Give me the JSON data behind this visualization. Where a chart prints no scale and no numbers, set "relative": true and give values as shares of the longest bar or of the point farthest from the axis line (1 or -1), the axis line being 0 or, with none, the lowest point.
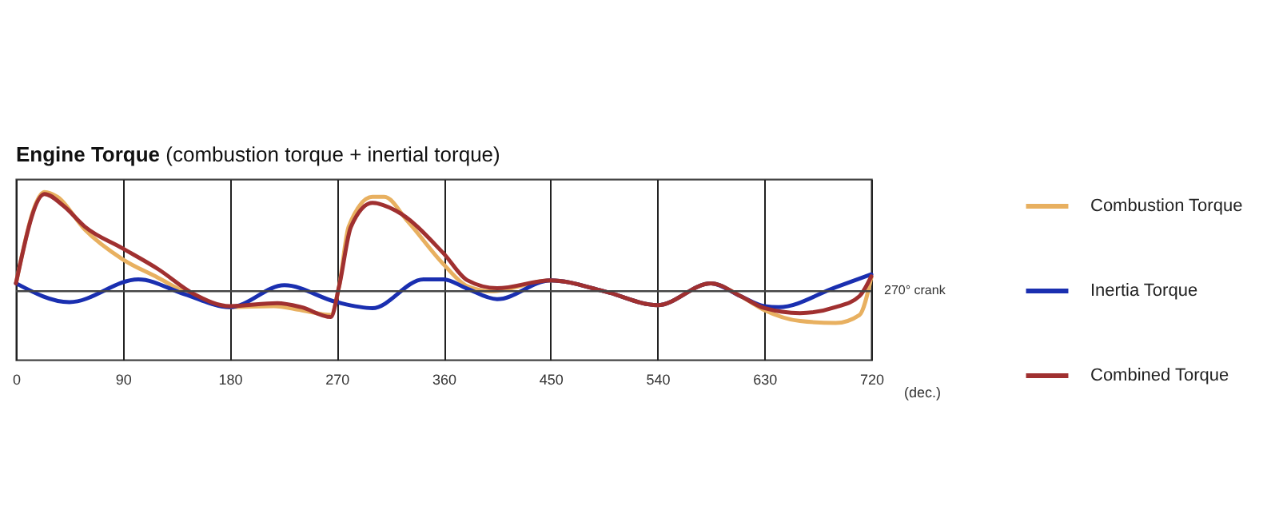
{
  "chart_data": {
    "type": "line",
    "title": "Engine Torque",
    "subtitle": "(combustion torque + inertial torque)",
    "xlabel": "(dec.)",
    "relative": true,
    "xlim": [
      0,
      720
    ],
    "xticks": [
      0,
      90,
      180,
      270,
      360,
      450,
      540,
      630,
      720
    ],
    "grid": "x",
    "legend": "right",
    "line_style": "solid",
    "marker": "none",
    "ref_lines": [
      {
        "axis": "y",
        "value": 0,
        "label": "270° crank"
      }
    ],
    "series": [
      {
        "name": "Combustion Torque",
        "color": "#e8b060",
        "x": [
          0,
          24,
          35,
          58,
          90,
          119,
          155,
          180,
          217,
          240,
          265,
          272,
          280,
          300,
          310,
          330,
          360,
          380,
          400,
          450,
          495,
          540,
          585,
          610,
          630,
          660,
          690,
          710,
          720
        ],
        "values": [
          0.08,
          1.0,
          0.95,
          0.62,
          0.32,
          0.14,
          -0.08,
          -0.16,
          -0.15,
          -0.19,
          -0.24,
          0.05,
          0.65,
          0.95,
          0.95,
          0.7,
          0.27,
          0.05,
          0.0,
          0.11,
          0,
          -0.14,
          0.08,
          -0.05,
          -0.19,
          -0.3,
          -0.32,
          -0.24,
          0.14
        ]
      },
      {
        "name": "Inertia Torque",
        "color": "#1a2fb0",
        "x": [
          0,
          45,
          103,
          142,
          180,
          226,
          270,
          300,
          343,
          360,
          379,
          405,
          450,
          495,
          540,
          585,
          610,
          630,
          642,
          690,
          720
        ],
        "values": [
          0.08,
          -0.11,
          0.12,
          -0.03,
          -0.16,
          0.06,
          -0.11,
          -0.17,
          0.12,
          0.12,
          0.03,
          -0.08,
          0.11,
          0,
          -0.14,
          0.08,
          -0.05,
          -0.15,
          -0.16,
          0.04,
          0.17
        ]
      },
      {
        "name": "Combined Torque",
        "color": "#a03030",
        "x": [
          0,
          24,
          40,
          58,
          90,
          120,
          150,
          180,
          220,
          240,
          265,
          272,
          282,
          300,
          320,
          360,
          380,
          405,
          450,
          495,
          540,
          585,
          610,
          630,
          660,
          690,
          710,
          720
        ],
        "values": [
          0.08,
          0.98,
          0.86,
          0.65,
          0.43,
          0.22,
          -0.03,
          -0.15,
          -0.12,
          -0.16,
          -0.26,
          0.05,
          0.65,
          0.89,
          0.81,
          0.38,
          0.11,
          0.03,
          0.11,
          0,
          -0.14,
          0.08,
          -0.05,
          -0.17,
          -0.22,
          -0.16,
          -0.05,
          0.15
        ]
      }
    ]
  }
}
